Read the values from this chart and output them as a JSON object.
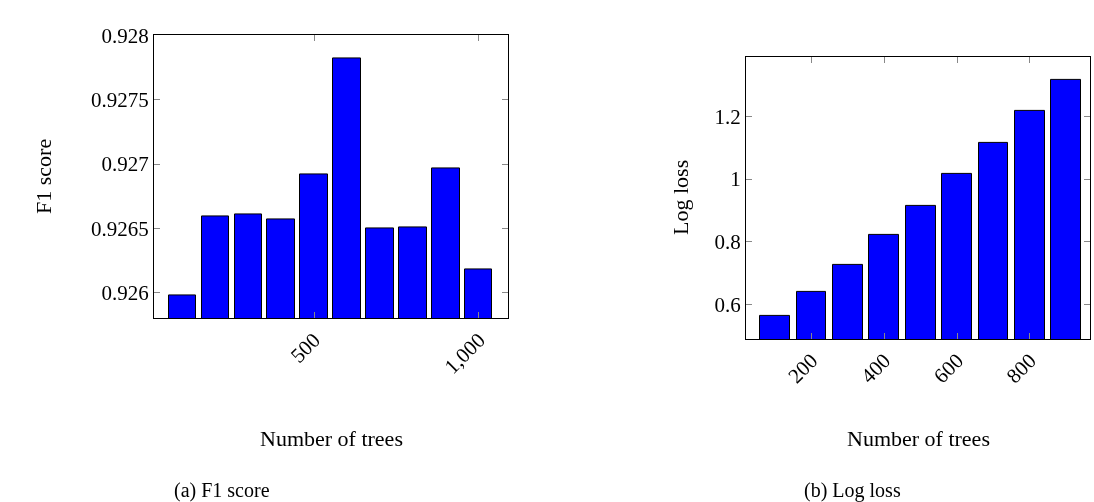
{
  "chart_data": [
    {
      "type": "bar",
      "x": [
        100,
        200,
        300,
        400,
        500,
        600,
        700,
        800,
        900,
        1000
      ],
      "values": [
        0.92598,
        0.92659,
        0.92661,
        0.92657,
        0.92692,
        0.92782,
        0.9265,
        0.92651,
        0.92697,
        0.92618
      ],
      "color": "#0000ff",
      "xlim": [
        15,
        1088
      ],
      "xticks": [
        500,
        {
          "value": 1000,
          "label": "1,000"
        }
      ],
      "ylim": [
        0.9258,
        0.928
      ],
      "yticks": [
        0.926,
        0.9265,
        0.927,
        0.9275,
        0.928
      ],
      "xlabel": "Number of trees",
      "ylabel": "F1 score",
      "annotations": [
        "(a) F1 score"
      ]
    },
    {
      "type": "bar",
      "x": [
        100,
        200,
        300,
        400,
        500,
        600,
        700,
        800,
        900
      ],
      "values": [
        0.565,
        0.641,
        0.726,
        0.821,
        0.915,
        1.017,
        1.116,
        1.219,
        1.318
      ],
      "color": "#0000ff",
      "xlim": [
        20,
        965
      ],
      "xticks": [
        200,
        400,
        600,
        800
      ],
      "ylim": [
        0.49,
        1.39
      ],
      "yticks": [
        0.6,
        0.8,
        1,
        1.2
      ],
      "xlabel": "Number of trees",
      "ylabel": "Log loss",
      "annotations": [
        "(b) Log loss"
      ]
    }
  ]
}
